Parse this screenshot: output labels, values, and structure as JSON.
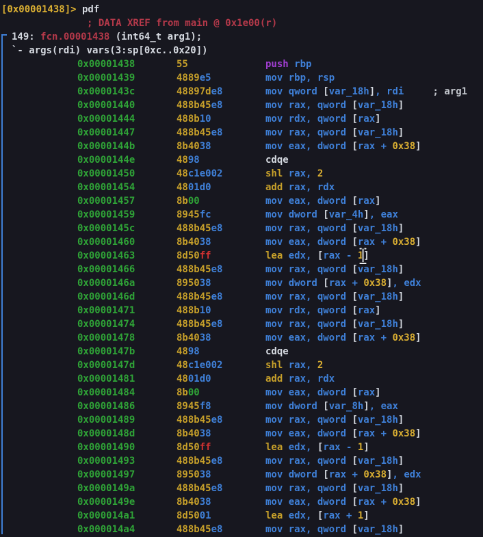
{
  "prompt": {
    "address": "[0x00001438]>",
    "command": "pdf"
  },
  "function_info": {
    "xref_comment": "; DATA XREF from main @ 0x1e00(r)",
    "size_label": "149: ",
    "name": "fcn.00001438",
    "signature": " (int64_t arg1);",
    "vars_line": "`- args(rdi) vars(3:sp[0xc..0x20])"
  },
  "colors": {
    "background": "#17171f",
    "address_green": "#2fa337",
    "byte_gold": "#c7a02a",
    "number_yellow": "#d9ae32",
    "register_blue": "#3f80d8",
    "text_white": "#d5d9e0",
    "ff_byte_red": "#ce3131",
    "xref_red": "#b5394a",
    "push_magenta": "#a23ed3"
  },
  "cursor": {
    "type": "ibeam-text-cursor",
    "row_address": "0x00001463"
  },
  "disassembly": {
    "rows": [
      {
        "addr": "0x00001438",
        "bytes": [
          [
            "55",
            "y"
          ]
        ],
        "asm": [
          [
            "push ",
            "m"
          ],
          [
            "rbp",
            "b"
          ]
        ]
      },
      {
        "addr": "0x00001439",
        "bytes": [
          [
            "4889",
            "y"
          ],
          [
            "e5",
            "b"
          ]
        ],
        "asm": [
          [
            "mov rbp, rsp",
            "b"
          ]
        ]
      },
      {
        "addr": "0x0000143c",
        "bytes": [
          [
            "48897d",
            "y"
          ],
          [
            "e8",
            "b"
          ]
        ],
        "asm": [
          [
            "mov qword ",
            "b"
          ],
          [
            "[",
            "w"
          ],
          [
            "var_18h",
            "b"
          ],
          [
            "]",
            "w"
          ],
          [
            ", rdi",
            "b"
          ],
          [
            "     ",
            "w"
          ],
          [
            "; arg1",
            "cm"
          ]
        ]
      },
      {
        "addr": "0x00001440",
        "bytes": [
          [
            "488b45",
            "y"
          ],
          [
            "e8",
            "b"
          ]
        ],
        "asm": [
          [
            "mov rax, qword ",
            "b"
          ],
          [
            "[",
            "w"
          ],
          [
            "var_18h",
            "b"
          ],
          [
            "]",
            "w"
          ]
        ]
      },
      {
        "addr": "0x00001444",
        "bytes": [
          [
            "488b",
            "y"
          ],
          [
            "10",
            "b"
          ]
        ],
        "asm": [
          [
            "mov rdx, qword ",
            "b"
          ],
          [
            "[",
            "w"
          ],
          [
            "rax",
            "b"
          ],
          [
            "]",
            "w"
          ]
        ]
      },
      {
        "addr": "0x00001447",
        "bytes": [
          [
            "488b45",
            "y"
          ],
          [
            "e8",
            "b"
          ]
        ],
        "asm": [
          [
            "mov rax, qword ",
            "b"
          ],
          [
            "[",
            "w"
          ],
          [
            "var_18h",
            "b"
          ],
          [
            "]",
            "w"
          ]
        ]
      },
      {
        "addr": "0x0000144b",
        "bytes": [
          [
            "8b40",
            "y"
          ],
          [
            "38",
            "b"
          ]
        ],
        "asm": [
          [
            "mov eax, dword ",
            "b"
          ],
          [
            "[",
            "w"
          ],
          [
            "rax + ",
            "b"
          ],
          [
            "0x38",
            "n"
          ],
          [
            "]",
            "w"
          ]
        ]
      },
      {
        "addr": "0x0000144e",
        "bytes": [
          [
            "48",
            "y"
          ],
          [
            "98",
            "b"
          ]
        ],
        "asm": [
          [
            "cdqe",
            "w"
          ]
        ]
      },
      {
        "addr": "0x00001450",
        "bytes": [
          [
            "48",
            "y"
          ],
          [
            "c1e002",
            "b"
          ]
        ],
        "asm": [
          [
            "shl ",
            "y"
          ],
          [
            "rax, ",
            "b"
          ],
          [
            "2",
            "n"
          ]
        ]
      },
      {
        "addr": "0x00001454",
        "bytes": [
          [
            "48",
            "y"
          ],
          [
            "01d0",
            "b"
          ]
        ],
        "asm": [
          [
            "add ",
            "y"
          ],
          [
            "rax, rdx",
            "b"
          ]
        ]
      },
      {
        "addr": "0x00001457",
        "bytes": [
          [
            "8b",
            "y"
          ],
          [
            "00",
            "g"
          ]
        ],
        "asm": [
          [
            "mov eax, dword ",
            "b"
          ],
          [
            "[",
            "w"
          ],
          [
            "rax",
            "b"
          ],
          [
            "]",
            "w"
          ]
        ]
      },
      {
        "addr": "0x00001459",
        "bytes": [
          [
            "8945",
            "y"
          ],
          [
            "fc",
            "b"
          ]
        ],
        "asm": [
          [
            "mov dword ",
            "b"
          ],
          [
            "[",
            "w"
          ],
          [
            "var_4h",
            "b"
          ],
          [
            "]",
            "w"
          ],
          [
            ", eax",
            "b"
          ]
        ]
      },
      {
        "addr": "0x0000145c",
        "bytes": [
          [
            "488b45",
            "y"
          ],
          [
            "e8",
            "b"
          ]
        ],
        "asm": [
          [
            "mov rax, qword ",
            "b"
          ],
          [
            "[",
            "w"
          ],
          [
            "var_18h",
            "b"
          ],
          [
            "]",
            "w"
          ]
        ]
      },
      {
        "addr": "0x00001460",
        "bytes": [
          [
            "8b40",
            "y"
          ],
          [
            "38",
            "b"
          ]
        ],
        "asm": [
          [
            "mov eax, dword ",
            "b"
          ],
          [
            "[",
            "w"
          ],
          [
            "rax + ",
            "b"
          ],
          [
            "0x38",
            "n"
          ],
          [
            "]",
            "w"
          ]
        ]
      },
      {
        "addr": "0x00001463",
        "bytes": [
          [
            "8d50",
            "y"
          ],
          [
            "ff",
            "r"
          ]
        ],
        "asm": [
          [
            "lea ",
            "y"
          ],
          [
            "edx, ",
            "b"
          ],
          [
            "[",
            "w"
          ],
          [
            "rax - ",
            "b"
          ],
          [
            "1",
            "n"
          ],
          [
            "]",
            "w"
          ]
        ]
      },
      {
        "addr": "0x00001466",
        "bytes": [
          [
            "488b45",
            "y"
          ],
          [
            "e8",
            "b"
          ]
        ],
        "asm": [
          [
            "mov rax, qword ",
            "b"
          ],
          [
            "[",
            "w"
          ],
          [
            "var_18h",
            "b"
          ],
          [
            "]",
            "w"
          ]
        ]
      },
      {
        "addr": "0x0000146a",
        "bytes": [
          [
            "8950",
            "y"
          ],
          [
            "38",
            "b"
          ]
        ],
        "asm": [
          [
            "mov dword ",
            "b"
          ],
          [
            "[",
            "w"
          ],
          [
            "rax + ",
            "b"
          ],
          [
            "0x38",
            "n"
          ],
          [
            "]",
            "w"
          ],
          [
            ", edx",
            "b"
          ]
        ]
      },
      {
        "addr": "0x0000146d",
        "bytes": [
          [
            "488b45",
            "y"
          ],
          [
            "e8",
            "b"
          ]
        ],
        "asm": [
          [
            "mov rax, qword ",
            "b"
          ],
          [
            "[",
            "w"
          ],
          [
            "var_18h",
            "b"
          ],
          [
            "]",
            "w"
          ]
        ]
      },
      {
        "addr": "0x00001471",
        "bytes": [
          [
            "488b",
            "y"
          ],
          [
            "10",
            "b"
          ]
        ],
        "asm": [
          [
            "mov rdx, qword ",
            "b"
          ],
          [
            "[",
            "w"
          ],
          [
            "rax",
            "b"
          ],
          [
            "]",
            "w"
          ]
        ]
      },
      {
        "addr": "0x00001474",
        "bytes": [
          [
            "488b45",
            "y"
          ],
          [
            "e8",
            "b"
          ]
        ],
        "asm": [
          [
            "mov rax, qword ",
            "b"
          ],
          [
            "[",
            "w"
          ],
          [
            "var_18h",
            "b"
          ],
          [
            "]",
            "w"
          ]
        ]
      },
      {
        "addr": "0x00001478",
        "bytes": [
          [
            "8b40",
            "y"
          ],
          [
            "38",
            "b"
          ]
        ],
        "asm": [
          [
            "mov eax, dword ",
            "b"
          ],
          [
            "[",
            "w"
          ],
          [
            "rax + ",
            "b"
          ],
          [
            "0x38",
            "n"
          ],
          [
            "]",
            "w"
          ]
        ]
      },
      {
        "addr": "0x0000147b",
        "bytes": [
          [
            "48",
            "y"
          ],
          [
            "98",
            "b"
          ]
        ],
        "asm": [
          [
            "cdqe",
            "w"
          ]
        ]
      },
      {
        "addr": "0x0000147d",
        "bytes": [
          [
            "48",
            "y"
          ],
          [
            "c1e002",
            "b"
          ]
        ],
        "asm": [
          [
            "shl ",
            "y"
          ],
          [
            "rax, ",
            "b"
          ],
          [
            "2",
            "n"
          ]
        ]
      },
      {
        "addr": "0x00001481",
        "bytes": [
          [
            "48",
            "y"
          ],
          [
            "01d0",
            "b"
          ]
        ],
        "asm": [
          [
            "add ",
            "y"
          ],
          [
            "rax, rdx",
            "b"
          ]
        ]
      },
      {
        "addr": "0x00001484",
        "bytes": [
          [
            "8b",
            "y"
          ],
          [
            "00",
            "g"
          ]
        ],
        "asm": [
          [
            "mov eax, dword ",
            "b"
          ],
          [
            "[",
            "w"
          ],
          [
            "rax",
            "b"
          ],
          [
            "]",
            "w"
          ]
        ]
      },
      {
        "addr": "0x00001486",
        "bytes": [
          [
            "8945",
            "y"
          ],
          [
            "f8",
            "b"
          ]
        ],
        "asm": [
          [
            "mov dword ",
            "b"
          ],
          [
            "[",
            "w"
          ],
          [
            "var_8h",
            "b"
          ],
          [
            "]",
            "w"
          ],
          [
            ", eax",
            "b"
          ]
        ]
      },
      {
        "addr": "0x00001489",
        "bytes": [
          [
            "488b45",
            "y"
          ],
          [
            "e8",
            "b"
          ]
        ],
        "asm": [
          [
            "mov rax, qword ",
            "b"
          ],
          [
            "[",
            "w"
          ],
          [
            "var_18h",
            "b"
          ],
          [
            "]",
            "w"
          ]
        ]
      },
      {
        "addr": "0x0000148d",
        "bytes": [
          [
            "8b40",
            "y"
          ],
          [
            "38",
            "b"
          ]
        ],
        "asm": [
          [
            "mov eax, dword ",
            "b"
          ],
          [
            "[",
            "w"
          ],
          [
            "rax + ",
            "b"
          ],
          [
            "0x38",
            "n"
          ],
          [
            "]",
            "w"
          ]
        ]
      },
      {
        "addr": "0x00001490",
        "bytes": [
          [
            "8d50",
            "y"
          ],
          [
            "ff",
            "r"
          ]
        ],
        "asm": [
          [
            "lea ",
            "y"
          ],
          [
            "edx, ",
            "b"
          ],
          [
            "[",
            "w"
          ],
          [
            "rax - ",
            "b"
          ],
          [
            "1",
            "n"
          ],
          [
            "]",
            "w"
          ]
        ]
      },
      {
        "addr": "0x00001493",
        "bytes": [
          [
            "488b45",
            "y"
          ],
          [
            "e8",
            "b"
          ]
        ],
        "asm": [
          [
            "mov rax, qword ",
            "b"
          ],
          [
            "[",
            "w"
          ],
          [
            "var_18h",
            "b"
          ],
          [
            "]",
            "w"
          ]
        ]
      },
      {
        "addr": "0x00001497",
        "bytes": [
          [
            "8950",
            "y"
          ],
          [
            "38",
            "b"
          ]
        ],
        "asm": [
          [
            "mov dword ",
            "b"
          ],
          [
            "[",
            "w"
          ],
          [
            "rax + ",
            "b"
          ],
          [
            "0x38",
            "n"
          ],
          [
            "]",
            "w"
          ],
          [
            ", edx",
            "b"
          ]
        ]
      },
      {
        "addr": "0x0000149a",
        "bytes": [
          [
            "488b45",
            "y"
          ],
          [
            "e8",
            "b"
          ]
        ],
        "asm": [
          [
            "mov rax, qword ",
            "b"
          ],
          [
            "[",
            "w"
          ],
          [
            "var_18h",
            "b"
          ],
          [
            "]",
            "w"
          ]
        ]
      },
      {
        "addr": "0x0000149e",
        "bytes": [
          [
            "8b40",
            "y"
          ],
          [
            "38",
            "b"
          ]
        ],
        "asm": [
          [
            "mov eax, dword ",
            "b"
          ],
          [
            "[",
            "w"
          ],
          [
            "rax + ",
            "b"
          ],
          [
            "0x38",
            "n"
          ],
          [
            "]",
            "w"
          ]
        ]
      },
      {
        "addr": "0x000014a1",
        "bytes": [
          [
            "8d50",
            "y"
          ],
          [
            "01",
            "b"
          ]
        ],
        "asm": [
          [
            "lea ",
            "y"
          ],
          [
            "edx, ",
            "b"
          ],
          [
            "[",
            "w"
          ],
          [
            "rax + ",
            "b"
          ],
          [
            "1",
            "n"
          ],
          [
            "]",
            "w"
          ]
        ]
      },
      {
        "addr": "0x000014a4",
        "bytes": [
          [
            "488b45",
            "y"
          ],
          [
            "e8",
            "b"
          ]
        ],
        "asm": [
          [
            "mov rax, qword ",
            "b"
          ],
          [
            "[",
            "w"
          ],
          [
            "var_18h",
            "b"
          ],
          [
            "]",
            "w"
          ]
        ]
      }
    ]
  }
}
